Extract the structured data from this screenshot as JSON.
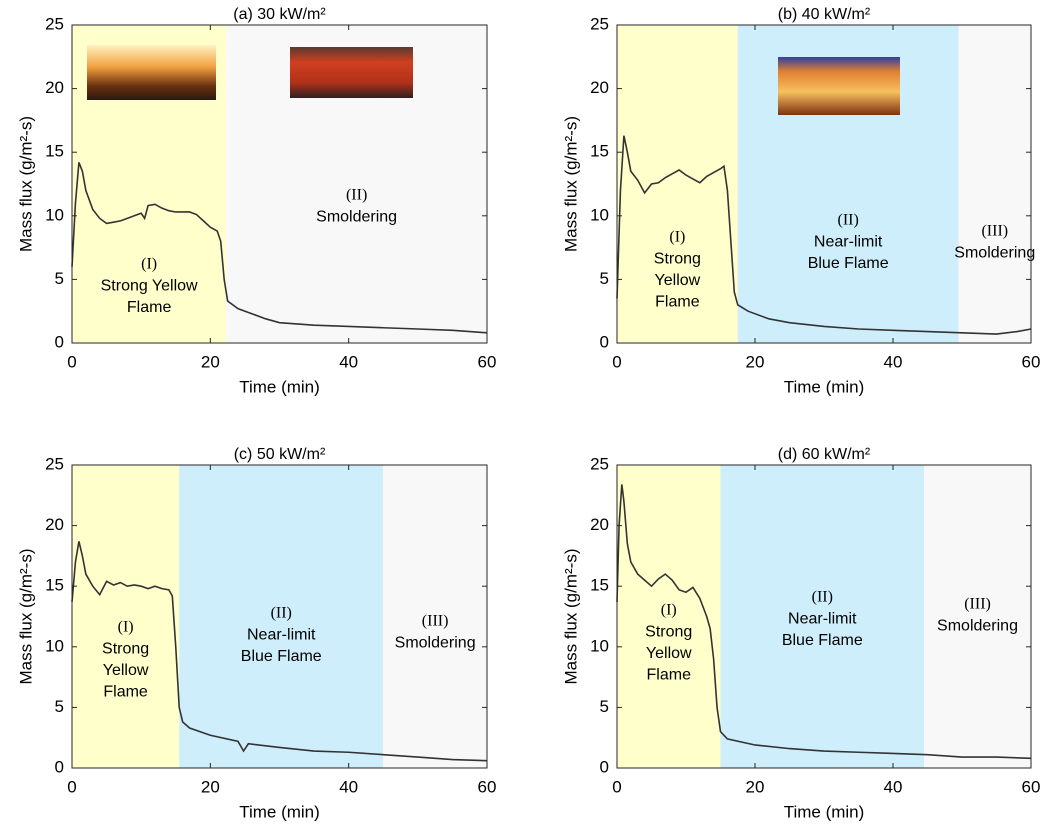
{
  "chart_data": [
    {
      "type": "line",
      "title": "(a) 30 kW/m²",
      "xlabel": "Time (min)",
      "ylabel": "Mass flux (g/m²-s)",
      "xlim": [
        0,
        60
      ],
      "ylim": [
        0,
        25
      ],
      "xticks": [
        0,
        20,
        40,
        60
      ],
      "yticks": [
        0,
        5,
        10,
        15,
        20,
        25
      ],
      "color": "#333333",
      "x": [
        0,
        0.5,
        1,
        1.5,
        2,
        3,
        4,
        5,
        6,
        7,
        8,
        9,
        10,
        10.5,
        11,
        12,
        13,
        14,
        15,
        16,
        17,
        18,
        19,
        20,
        21,
        21.5,
        22,
        22.5,
        24,
        26,
        28,
        30,
        35,
        40,
        45,
        50,
        55,
        60
      ],
      "values": [
        6,
        11,
        14.2,
        13.5,
        12,
        10.5,
        9.8,
        9.4,
        9.5,
        9.6,
        9.8,
        10,
        10.2,
        9.8,
        10.8,
        10.9,
        10.6,
        10.4,
        10.3,
        10.3,
        10.3,
        10.1,
        9.6,
        9.1,
        8.8,
        8,
        5,
        3.3,
        2.7,
        2.3,
        1.9,
        1.6,
        1.4,
        1.3,
        1.2,
        1.1,
        1.0,
        0.8
      ],
      "regions": [
        {
          "x0": 0,
          "x1": 22.3,
          "color": "#ffffcc",
          "label_color": "#e8191e",
          "label": [
            "(I)",
            "Strong Yellow",
            "Flame"
          ]
        },
        {
          "x0": 22.3,
          "x1": 60,
          "color": "#f8f8f8",
          "label_color": "#000000",
          "label": [
            "(II)",
            "Smoldering"
          ]
        }
      ]
    },
    {
      "type": "line",
      "title": "(b) 40 kW/m²",
      "xlabel": "Time (min)",
      "ylabel": "Mass flux (g/m²-s)",
      "xlim": [
        0,
        60
      ],
      "ylim": [
        0,
        25
      ],
      "xticks": [
        0,
        20,
        40,
        60
      ],
      "yticks": [
        0,
        5,
        10,
        15,
        20,
        25
      ],
      "color": "#333333",
      "x": [
        0,
        0.5,
        1,
        1.5,
        2,
        3,
        4,
        5,
        6,
        7,
        8,
        9,
        10,
        11,
        12,
        13,
        14,
        15,
        15.5,
        16,
        16.5,
        17,
        17.5,
        19,
        22,
        25,
        30,
        35,
        40,
        45,
        50,
        55,
        58,
        60
      ],
      "values": [
        3.5,
        12,
        16.3,
        15,
        13.5,
        12.8,
        11.8,
        12.5,
        12.6,
        13,
        13.3,
        13.6,
        13.2,
        12.9,
        12.6,
        13.1,
        13.4,
        13.7,
        13.9,
        12,
        8,
        4,
        3,
        2.5,
        1.9,
        1.6,
        1.3,
        1.1,
        1.0,
        0.9,
        0.8,
        0.7,
        0.9,
        1.1
      ],
      "regions": [
        {
          "x0": 0,
          "x1": 17.5,
          "color": "#ffffcc",
          "label_color": "#e8191e",
          "label": [
            "(I)",
            "Strong",
            "Yellow",
            "Flame"
          ]
        },
        {
          "x0": 17.5,
          "x1": 49.5,
          "color": "#cdeefa",
          "label_color": "#3f3fe0",
          "label": [
            "(II)",
            "Near-limit",
            "Blue Flame"
          ]
        },
        {
          "x0": 49.5,
          "x1": 60,
          "color": "#f8f8f8",
          "label_color": "#000000",
          "label": [
            "(III)",
            "Smoldering"
          ]
        }
      ]
    },
    {
      "type": "line",
      "title": "(c) 50 kW/m²",
      "xlabel": "Time (min)",
      "ylabel": "Mass flux (g/m²-s)",
      "xlim": [
        0,
        60
      ],
      "ylim": [
        0,
        25
      ],
      "xticks": [
        0,
        20,
        40,
        60
      ],
      "yticks": [
        0,
        5,
        10,
        15,
        20,
        25
      ],
      "color": "#333333",
      "x": [
        0,
        0.5,
        1,
        1.5,
        2,
        3,
        4,
        5,
        6,
        7,
        8,
        9,
        10,
        11,
        12,
        13,
        14,
        14.5,
        15,
        15.5,
        16,
        17,
        20,
        24,
        24.8,
        25.5,
        30,
        35,
        40,
        45,
        50,
        55,
        60
      ],
      "values": [
        13.7,
        17,
        18.7,
        17.5,
        16,
        15,
        14.3,
        15.4,
        15.1,
        15.3,
        15,
        15.1,
        15,
        14.8,
        15,
        14.8,
        14.7,
        14.2,
        10,
        5,
        3.8,
        3.3,
        2.7,
        2.2,
        1.4,
        2,
        1.7,
        1.4,
        1.3,
        1.1,
        0.9,
        0.7,
        0.6
      ],
      "regions": [
        {
          "x0": 0,
          "x1": 15.5,
          "color": "#ffffcc",
          "label_color": "#e8191e",
          "label": [
            "(I)",
            "Strong",
            "Yellow",
            "Flame"
          ]
        },
        {
          "x0": 15.5,
          "x1": 45,
          "color": "#cdeefa",
          "label_color": "#3f3fe0",
          "label": [
            "(II)",
            "Near-limit",
            "Blue Flame"
          ]
        },
        {
          "x0": 45,
          "x1": 60,
          "color": "#f8f8f8",
          "label_color": "#000000",
          "label": [
            "(III)",
            "Smoldering"
          ]
        }
      ]
    },
    {
      "type": "line",
      "title": "(d) 60 kW/m²",
      "xlabel": "Time (min)",
      "ylabel": "Mass flux (g/m²-s)",
      "xlim": [
        0,
        60
      ],
      "ylim": [
        0,
        25
      ],
      "xticks": [
        0,
        20,
        40,
        60
      ],
      "yticks": [
        0,
        5,
        10,
        15,
        20,
        25
      ],
      "color": "#333333",
      "x": [
        0,
        0.3,
        0.7,
        1,
        1.5,
        2,
        3,
        4,
        5,
        6,
        7,
        8,
        9,
        10,
        11,
        12,
        13,
        13.5,
        14,
        14.5,
        15,
        16,
        20,
        25,
        30,
        35,
        40,
        45,
        50,
        55,
        60
      ],
      "values": [
        13.7,
        20,
        23.4,
        22,
        18.5,
        17,
        16,
        15.5,
        15,
        15.6,
        16,
        15.5,
        14.7,
        14.5,
        14.9,
        14,
        12.5,
        11.5,
        9,
        5,
        3,
        2.4,
        1.9,
        1.6,
        1.4,
        1.3,
        1.2,
        1.1,
        0.9,
        0.9,
        0.8
      ],
      "regions": [
        {
          "x0": 0,
          "x1": 15,
          "color": "#ffffcc",
          "label_color": "#e8191e",
          "label": [
            "(I)",
            "Strong",
            "Yellow",
            "Flame"
          ]
        },
        {
          "x0": 15,
          "x1": 44.5,
          "color": "#cdeefa",
          "label_color": "#3f3fe0",
          "label": [
            "(II)",
            "Near-limit",
            "Blue Flame"
          ]
        },
        {
          "x0": 44.5,
          "x1": 60,
          "color": "#f8f8f8",
          "label_color": "#000000",
          "label": [
            "(III)",
            "Smoldering"
          ]
        }
      ]
    }
  ]
}
